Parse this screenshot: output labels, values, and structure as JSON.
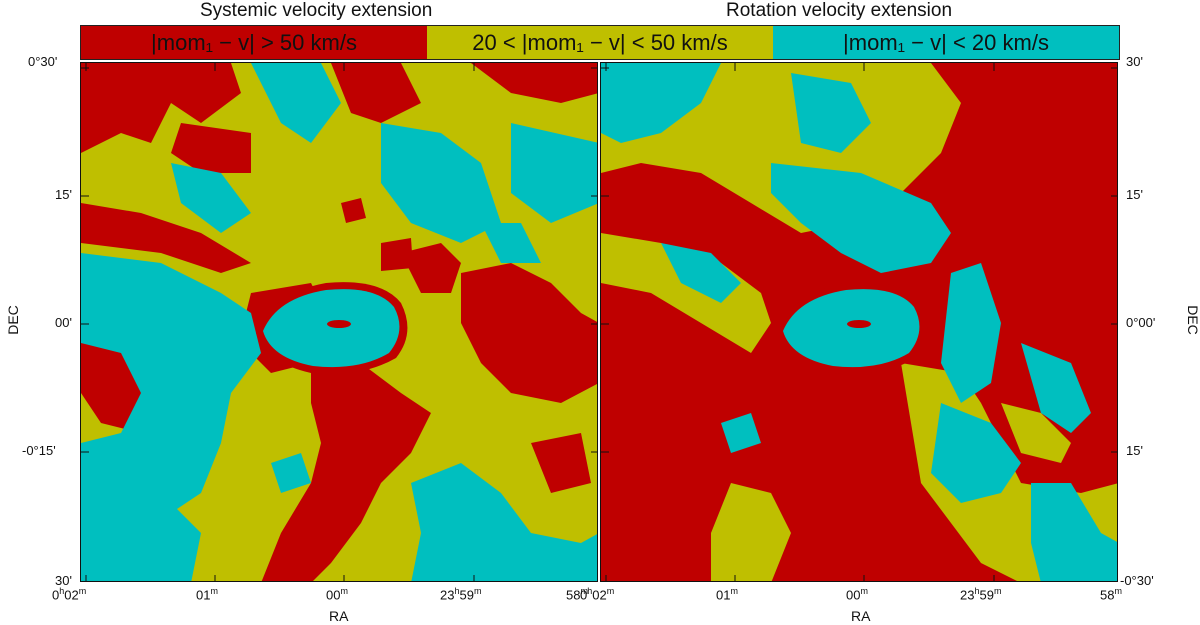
{
  "titles": {
    "left": "Systemic velocity extension",
    "right": "Rotation velocity extension"
  },
  "legend": [
    {
      "text": "|mom₁ − v| > 50 km/s",
      "color": "#bf0000"
    },
    {
      "text": "20 < |mom₁ − v| < 50 km/s",
      "color": "#bfbf00"
    },
    {
      "text": "|mom₁ − v| < 20 km/s",
      "color": "#00bfbf"
    }
  ],
  "axes": {
    "xlabel": "RA",
    "ylabel": "DEC",
    "left_y_ticks": [
      "0°30'",
      "15'",
      "00'",
      "-0°15'",
      "30'"
    ],
    "right_y_ticks": [
      "30'",
      "15'",
      "0°00'",
      "15'",
      "-0°30'"
    ],
    "x_ticks_left": [
      "0h02m",
      "01m",
      "00m",
      "23h59m",
      "58m"
    ],
    "x_ticks_right": [
      "0h02m",
      "01m",
      "00m",
      "23h59m",
      "58m"
    ]
  },
  "colors": {
    "red": "#bf0000",
    "yellow": "#bfbf00",
    "cyan": "#00bfbf"
  }
}
